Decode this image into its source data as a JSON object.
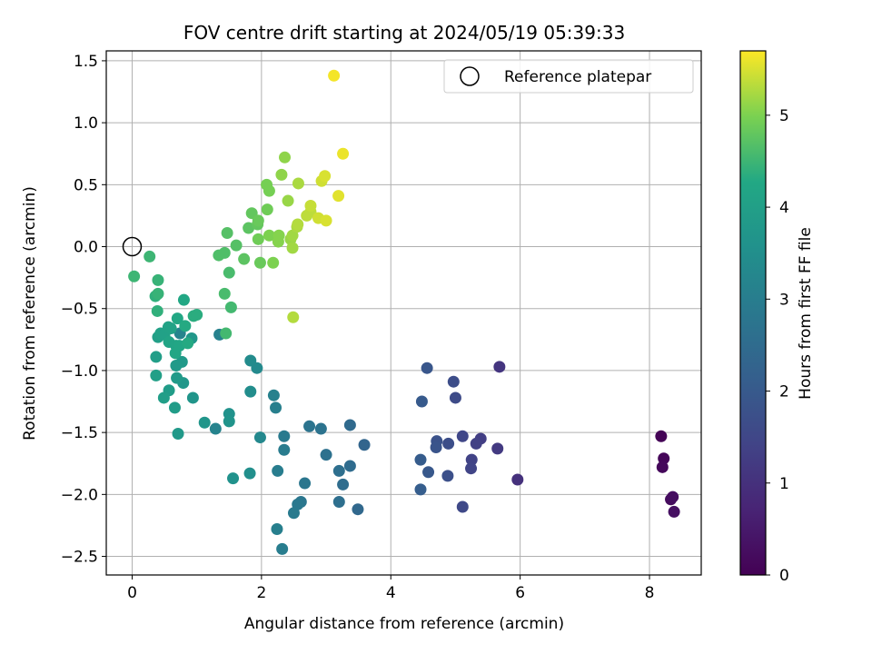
{
  "chart_data": {
    "type": "scatter",
    "title": "FOV centre drift starting at 2024/05/19 05:39:33",
    "xlabel": "Angular distance from reference (arcmin)",
    "ylabel": "Rotation from reference (arcmin)",
    "xlim": [
      -0.4,
      8.8
    ],
    "ylim": [
      -2.65,
      1.58
    ],
    "xticks": [
      0,
      2,
      4,
      6,
      8
    ],
    "xtick_labels": [
      "0",
      "2",
      "4",
      "6",
      "8"
    ],
    "yticks": [
      -2.5,
      -2.0,
      -1.5,
      -1.0,
      -0.5,
      0.0,
      0.5,
      1.0,
      1.5
    ],
    "ytick_labels": [
      "−2.5",
      "−2.0",
      "−1.5",
      "−1.0",
      "−0.5",
      "0.0",
      "0.5",
      "1.0",
      "1.5"
    ],
    "grid": true,
    "legend": {
      "position": "top-right",
      "entries": [
        "Reference platepar"
      ]
    },
    "colorbar": {
      "label": "Hours from first FF file",
      "colormap": "viridis",
      "range": [
        0,
        5.7
      ],
      "ticks": [
        0,
        1,
        2,
        3,
        4,
        5
      ],
      "tick_labels": [
        "0",
        "1",
        "2",
        "3",
        "4",
        "5"
      ]
    },
    "reference_point": {
      "x": 0,
      "y": 0
    },
    "points": [
      {
        "x": 8.18,
        "y": -1.53,
        "t": 0.05
      },
      {
        "x": 8.22,
        "y": -1.71,
        "t": 0.1
      },
      {
        "x": 8.2,
        "y": -1.78,
        "t": 0.15
      },
      {
        "x": 8.33,
        "y": -2.04,
        "t": 0.2
      },
      {
        "x": 8.36,
        "y": -2.02,
        "t": 0.25
      },
      {
        "x": 8.38,
        "y": -2.14,
        "t": 0.3
      },
      {
        "x": 5.96,
        "y": -1.88,
        "t": 1.0
      },
      {
        "x": 5.68,
        "y": -0.97,
        "t": 1.1
      },
      {
        "x": 5.65,
        "y": -1.63,
        "t": 1.2
      },
      {
        "x": 5.39,
        "y": -1.55,
        "t": 1.3
      },
      {
        "x": 5.32,
        "y": -1.59,
        "t": 1.35
      },
      {
        "x": 5.25,
        "y": -1.72,
        "t": 1.4
      },
      {
        "x": 5.24,
        "y": -1.79,
        "t": 1.45
      },
      {
        "x": 5.11,
        "y": -1.53,
        "t": 1.5
      },
      {
        "x": 5.11,
        "y": -2.1,
        "t": 1.55
      },
      {
        "x": 5.0,
        "y": -1.22,
        "t": 1.6
      },
      {
        "x": 4.97,
        "y": -1.09,
        "t": 1.65
      },
      {
        "x": 4.89,
        "y": -1.59,
        "t": 1.7
      },
      {
        "x": 4.88,
        "y": -1.85,
        "t": 1.75
      },
      {
        "x": 4.71,
        "y": -1.57,
        "t": 1.8
      },
      {
        "x": 4.7,
        "y": -1.62,
        "t": 1.85
      },
      {
        "x": 4.56,
        "y": -0.98,
        "t": 1.9
      },
      {
        "x": 4.58,
        "y": -1.82,
        "t": 1.95
      },
      {
        "x": 4.48,
        "y": -1.25,
        "t": 2.0
      },
      {
        "x": 4.46,
        "y": -1.72,
        "t": 2.05
      },
      {
        "x": 4.46,
        "y": -1.96,
        "t": 2.1
      },
      {
        "x": 3.59,
        "y": -1.6,
        "t": 2.3
      },
      {
        "x": 3.49,
        "y": -2.12,
        "t": 2.4
      },
      {
        "x": 3.37,
        "y": -1.44,
        "t": 2.45
      },
      {
        "x": 3.37,
        "y": -1.77,
        "t": 2.5
      },
      {
        "x": 3.26,
        "y": -1.92,
        "t": 2.55
      },
      {
        "x": 3.2,
        "y": -1.81,
        "t": 2.6
      },
      {
        "x": 3.2,
        "y": -2.06,
        "t": 2.6
      },
      {
        "x": 3.0,
        "y": -1.68,
        "t": 2.65
      },
      {
        "x": 2.92,
        "y": -1.47,
        "t": 2.7
      },
      {
        "x": 2.74,
        "y": -1.45,
        "t": 2.75
      },
      {
        "x": 2.67,
        "y": -1.91,
        "t": 2.8
      },
      {
        "x": 2.61,
        "y": -2.06,
        "t": 2.8
      },
      {
        "x": 2.56,
        "y": -2.08,
        "t": 2.85
      },
      {
        "x": 2.5,
        "y": -2.15,
        "t": 2.9
      },
      {
        "x": 2.35,
        "y": -1.53,
        "t": 2.9
      },
      {
        "x": 2.35,
        "y": -1.64,
        "t": 2.95
      },
      {
        "x": 2.32,
        "y": -2.44,
        "t": 3.0
      },
      {
        "x": 2.25,
        "y": -1.81,
        "t": 3.0
      },
      {
        "x": 2.24,
        "y": -2.28,
        "t": 3.05
      },
      {
        "x": 2.22,
        "y": -1.3,
        "t": 3.05
      },
      {
        "x": 2.19,
        "y": -1.2,
        "t": 3.1
      },
      {
        "x": 1.35,
        "y": -0.71,
        "t": 3.1
      },
      {
        "x": 1.29,
        "y": -1.47,
        "t": 3.15
      },
      {
        "x": 0.74,
        "y": -0.7,
        "t": 3.2
      },
      {
        "x": 1.98,
        "y": -1.54,
        "t": 3.3
      },
      {
        "x": 1.93,
        "y": -0.98,
        "t": 3.35
      },
      {
        "x": 1.83,
        "y": -0.92,
        "t": 3.4
      },
      {
        "x": 1.83,
        "y": -1.17,
        "t": 3.45
      },
      {
        "x": 1.82,
        "y": -1.83,
        "t": 3.5
      },
      {
        "x": 1.56,
        "y": -1.87,
        "t": 3.6
      },
      {
        "x": 1.5,
        "y": -1.35,
        "t": 3.6
      },
      {
        "x": 1.5,
        "y": -1.41,
        "t": 3.65
      },
      {
        "x": 1.12,
        "y": -1.42,
        "t": 3.7
      },
      {
        "x": 0.94,
        "y": -1.22,
        "t": 3.7
      },
      {
        "x": 0.92,
        "y": -0.74,
        "t": 3.75
      },
      {
        "x": 0.79,
        "y": -1.1,
        "t": 3.75
      },
      {
        "x": 0.77,
        "y": -0.93,
        "t": 3.8
      },
      {
        "x": 0.71,
        "y": -1.51,
        "t": 3.8
      },
      {
        "x": 0.69,
        "y": -1.06,
        "t": 3.85
      },
      {
        "x": 0.68,
        "y": -0.96,
        "t": 3.85
      },
      {
        "x": 0.66,
        "y": -1.3,
        "t": 3.9
      },
      {
        "x": 0.57,
        "y": -1.16,
        "t": 3.9
      },
      {
        "x": 0.49,
        "y": -1.22,
        "t": 3.95
      },
      {
        "x": 0.37,
        "y": -0.89,
        "t": 3.95
      },
      {
        "x": 0.37,
        "y": -1.04,
        "t": 4.0
      },
      {
        "x": 0.4,
        "y": -0.73,
        "t": 4.0
      },
      {
        "x": 0.44,
        "y": -0.7,
        "t": 4.05
      },
      {
        "x": 0.5,
        "y": -0.71,
        "t": 4.05
      },
      {
        "x": 0.56,
        "y": -0.65,
        "t": 4.1
      },
      {
        "x": 0.6,
        "y": -0.66,
        "t": 4.1
      },
      {
        "x": 0.57,
        "y": -0.77,
        "t": 4.15
      },
      {
        "x": 0.68,
        "y": -0.8,
        "t": 4.15
      },
      {
        "x": 0.73,
        "y": -0.8,
        "t": 4.2
      },
      {
        "x": 0.67,
        "y": -0.86,
        "t": 4.2
      },
      {
        "x": 0.7,
        "y": -0.58,
        "t": 4.25
      },
      {
        "x": 0.8,
        "y": -0.43,
        "t": 4.25
      },
      {
        "x": 0.82,
        "y": -0.64,
        "t": 4.3
      },
      {
        "x": 0.86,
        "y": -0.78,
        "t": 4.3
      },
      {
        "x": 0.95,
        "y": -0.56,
        "t": 4.35
      },
      {
        "x": 1.0,
        "y": -0.55,
        "t": 4.35
      },
      {
        "x": 0.39,
        "y": -0.52,
        "t": 4.4
      },
      {
        "x": 0.36,
        "y": -0.4,
        "t": 4.4
      },
      {
        "x": 0.4,
        "y": -0.38,
        "t": 4.45
      },
      {
        "x": 0.4,
        "y": -0.27,
        "t": 4.45
      },
      {
        "x": 0.27,
        "y": -0.08,
        "t": 4.5
      },
      {
        "x": 0.03,
        "y": -0.24,
        "t": 4.5
      },
      {
        "x": 1.45,
        "y": -0.7,
        "t": 4.55
      },
      {
        "x": 1.53,
        "y": -0.49,
        "t": 4.55
      },
      {
        "x": 1.43,
        "y": -0.38,
        "t": 4.6
      },
      {
        "x": 1.5,
        "y": -0.21,
        "t": 4.6
      },
      {
        "x": 1.34,
        "y": -0.07,
        "t": 4.65
      },
      {
        "x": 1.43,
        "y": -0.05,
        "t": 4.65
      },
      {
        "x": 1.47,
        "y": 0.11,
        "t": 4.7
      },
      {
        "x": 1.61,
        "y": 0.01,
        "t": 4.7
      },
      {
        "x": 1.73,
        "y": -0.1,
        "t": 4.75
      },
      {
        "x": 1.8,
        "y": 0.15,
        "t": 4.75
      },
      {
        "x": 1.85,
        "y": 0.27,
        "t": 4.8
      },
      {
        "x": 1.94,
        "y": 0.18,
        "t": 4.8
      },
      {
        "x": 1.95,
        "y": 0.21,
        "t": 4.85
      },
      {
        "x": 1.98,
        "y": -0.13,
        "t": 4.85
      },
      {
        "x": 1.95,
        "y": 0.06,
        "t": 4.9
      },
      {
        "x": 2.09,
        "y": 0.3,
        "t": 4.9
      },
      {
        "x": 2.08,
        "y": 0.5,
        "t": 4.95
      },
      {
        "x": 2.12,
        "y": 0.45,
        "t": 4.95
      },
      {
        "x": 2.12,
        "y": 0.09,
        "t": 5.0
      },
      {
        "x": 2.18,
        "y": -0.13,
        "t": 5.0
      },
      {
        "x": 2.26,
        "y": 0.04,
        "t": 5.05
      },
      {
        "x": 2.27,
        "y": 0.09,
        "t": 5.05
      },
      {
        "x": 2.31,
        "y": 0.58,
        "t": 5.1
      },
      {
        "x": 2.36,
        "y": 0.72,
        "t": 5.1
      },
      {
        "x": 2.41,
        "y": 0.37,
        "t": 5.15
      },
      {
        "x": 2.45,
        "y": 0.06,
        "t": 5.15
      },
      {
        "x": 2.48,
        "y": 0.09,
        "t": 5.2
      },
      {
        "x": 2.48,
        "y": -0.01,
        "t": 5.2
      },
      {
        "x": 2.55,
        "y": 0.16,
        "t": 5.25
      },
      {
        "x": 2.57,
        "y": 0.51,
        "t": 5.25
      },
      {
        "x": 2.56,
        "y": 0.18,
        "t": 5.3
      },
      {
        "x": 2.49,
        "y": -0.57,
        "t": 5.3
      },
      {
        "x": 2.7,
        "y": 0.25,
        "t": 5.35
      },
      {
        "x": 2.76,
        "y": 0.28,
        "t": 5.35
      },
      {
        "x": 2.76,
        "y": 0.33,
        "t": 5.4
      },
      {
        "x": 2.88,
        "y": 0.23,
        "t": 5.45
      },
      {
        "x": 2.93,
        "y": 0.53,
        "t": 5.45
      },
      {
        "x": 2.98,
        "y": 0.57,
        "t": 5.5
      },
      {
        "x": 3.0,
        "y": 0.21,
        "t": 5.5
      },
      {
        "x": 3.19,
        "y": 0.41,
        "t": 5.55
      },
      {
        "x": 3.26,
        "y": 0.75,
        "t": 5.6
      },
      {
        "x": 3.12,
        "y": 1.38,
        "t": 5.65
      }
    ]
  }
}
